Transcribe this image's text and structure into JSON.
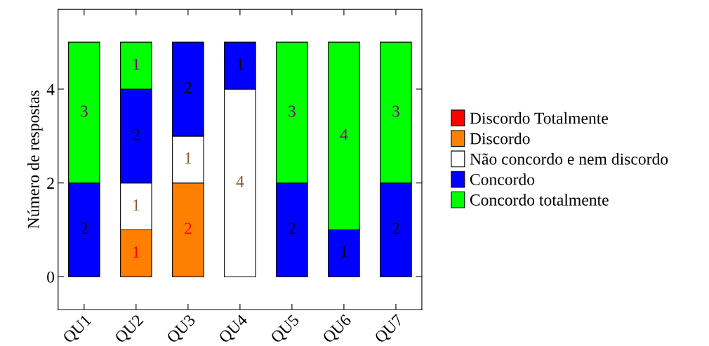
{
  "chart_data": {
    "type": "bar",
    "stacked": true,
    "ylabel": "Número de respostas",
    "categories": [
      "QU1",
      "QU2",
      "QU3",
      "QU4",
      "QU5",
      "QU6",
      "QU7"
    ],
    "series": [
      {
        "name": "Discordo Totalmente",
        "color": "#ff0000",
        "values": [
          0,
          0,
          0,
          0,
          0,
          0,
          0
        ],
        "value_labels": [
          null,
          null,
          null,
          null,
          null,
          null,
          null
        ]
      },
      {
        "name": "Discordo",
        "color": "#ff8000",
        "values": [
          0,
          1,
          2,
          0,
          0,
          0,
          0
        ],
        "value_labels": [
          null,
          "1",
          "2",
          null,
          null,
          null,
          null
        ]
      },
      {
        "name": "Não concordo e nem discordo",
        "color": "#ffffff",
        "values": [
          0,
          1,
          1,
          4,
          0,
          0,
          0
        ],
        "value_labels": [
          null,
          "1",
          "1",
          "4",
          null,
          null,
          null
        ]
      },
      {
        "name": "Concordo",
        "color": "#0000ff",
        "values": [
          2,
          2,
          2,
          1,
          2,
          1,
          2
        ],
        "value_labels": [
          "2",
          "2",
          "2",
          "1",
          "2",
          "1",
          "2"
        ]
      },
      {
        "name": "Concordo totalmente",
        "color": "#00ff00",
        "values": [
          3,
          1,
          0,
          0,
          3,
          4,
          3
        ],
        "value_labels": [
          "3",
          "1",
          null,
          null,
          "3",
          "4",
          "3"
        ]
      }
    ],
    "ylim": [
      -0.7,
      5.7
    ],
    "yticks": [
      0,
      2,
      4
    ],
    "grid": false,
    "legend": "right"
  }
}
